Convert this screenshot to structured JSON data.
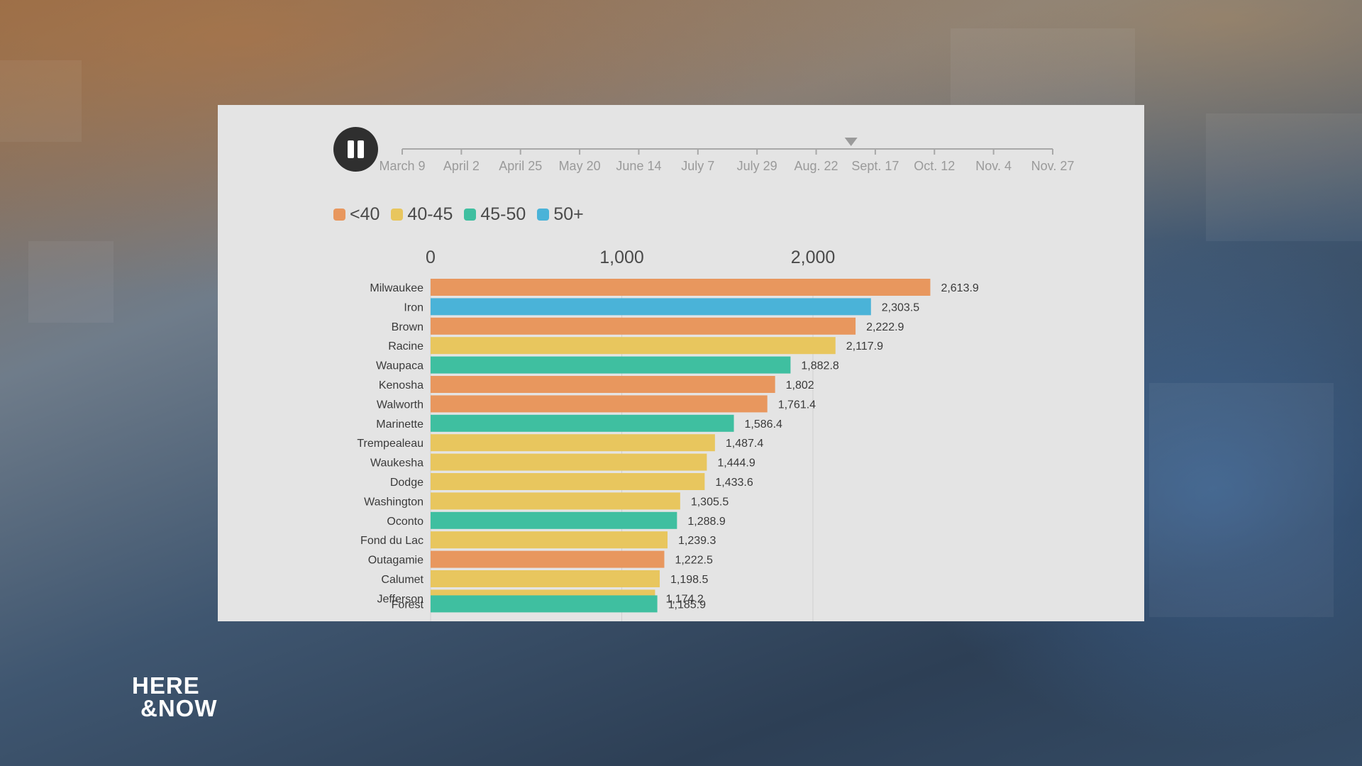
{
  "timeline": {
    "dates": [
      "March 9",
      "April 2",
      "April 25",
      "May 20",
      "June 14",
      "July 7",
      "July 29",
      "Aug. 22",
      "Sept. 17",
      "Oct. 12",
      "Nov. 4",
      "Nov. 27"
    ],
    "progress": 0.69
  },
  "legend": [
    {
      "label": "<40",
      "color": "#e8975e"
    },
    {
      "label": "40-45",
      "color": "#e8c65e"
    },
    {
      "label": "45-50",
      "color": "#3fbfa0"
    },
    {
      "label": "50+",
      "color": "#4ab3d8"
    }
  ],
  "chart_data": {
    "type": "bar",
    "orientation": "horizontal",
    "x_ticks": [
      "0",
      "1,000",
      "2,000"
    ],
    "xlim": [
      0,
      2000
    ],
    "categories": [
      "Milwaukee",
      "Iron",
      "Brown",
      "Racine",
      "Waupaca",
      "Kenosha",
      "Walworth",
      "Marinette",
      "Trempealeau",
      "Waukesha",
      "Dodge",
      "Washington",
      "Oconto",
      "Fond du Lac",
      "Outagamie",
      "Calumet",
      "Jefferson",
      "Forest"
    ],
    "values": [
      2613.9,
      2303.5,
      2222.9,
      2117.9,
      1882.8,
      1802,
      1761.4,
      1586.4,
      1487.4,
      1444.9,
      1433.6,
      1305.5,
      1288.9,
      1239.3,
      1222.5,
      1198.5,
      1174.2,
      1185.9
    ],
    "value_labels": [
      "2,613.9",
      "2,303.5",
      "2,222.9",
      "2,117.9",
      "1,882.8",
      "1,802",
      "1,761.4",
      "1,586.4",
      "1,487.4",
      "1,444.9",
      "1,433.6",
      "1,305.5",
      "1,288.9",
      "1,239.3",
      "1,222.5",
      "1,198.5",
      "1,174.2",
      "1,185.9"
    ],
    "groups": [
      "<40",
      "50+",
      "<40",
      "40-45",
      "45-50",
      "<40",
      "<40",
      "45-50",
      "40-45",
      "40-45",
      "40-45",
      "40-45",
      "45-50",
      "40-45",
      "<40",
      "40-45",
      "40-45",
      "45-50"
    ],
    "colors": {
      "<40": "#e8975e",
      "40-45": "#e8c65e",
      "45-50": "#3fbfa0",
      "50+": "#4ab3d8"
    },
    "grid": true
  },
  "logo": {
    "line1": "HERE",
    "line2": "&NOW"
  }
}
